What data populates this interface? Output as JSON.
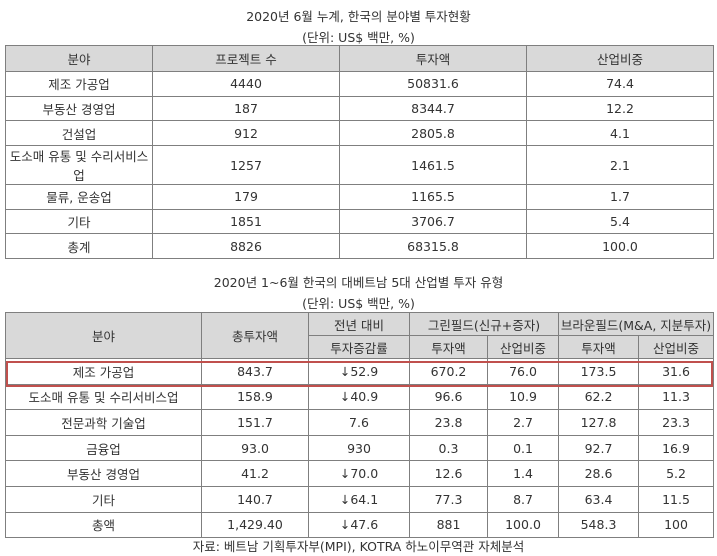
{
  "table1": {
    "title": "2020년 6월 누계, 한국의 분야별 투자현황",
    "unit": "(단위: US$ 백만, %)",
    "headers": [
      "분야",
      "프로젝트 수",
      "투자액",
      "산업비중"
    ],
    "rows": [
      [
        "제조 가공업",
        "4440",
        "50831.6",
        "74.4"
      ],
      [
        "부동산 경영업",
        "187",
        "8344.7",
        "12.2"
      ],
      [
        "건설업",
        "912",
        "2805.8",
        "4.1"
      ],
      [
        "도소매 유통 및 수리서비스업",
        "1257",
        "1461.5",
        "2.1"
      ],
      [
        "물류, 운송업",
        "179",
        "1165.5",
        "1.7"
      ],
      [
        "기타",
        "1851",
        "3706.7",
        "5.4"
      ],
      [
        "총계",
        "8826",
        "68315.8",
        "100.0"
      ]
    ]
  },
  "table2": {
    "title": "2020년 1~6월 한국의 대베트남 5대 산업별 투자 유형",
    "unit": "(단위: US$ 백만, %)",
    "headers": {
      "field": "분야",
      "total": "총투자액",
      "yoy_top": "전년 대비",
      "yoy_bottom": "투자증감률",
      "greenfield": "그린필드(신규+증자)",
      "brownfield": "브라운필드(M&A, 지분투자)",
      "amount": "투자액",
      "share": "산업비중"
    },
    "rows": [
      [
        "제조 가공업",
        "843.7",
        "↓52.9",
        "670.2",
        "76.0",
        "173.5",
        "31.6"
      ],
      [
        "도소매 유통 및 수리서비스업",
        "158.9",
        "↓40.9",
        "96.6",
        "10.9",
        "62.2",
        "11.3"
      ],
      [
        "전문과학 기술업",
        "151.7",
        "7.6",
        "23.8",
        "2.7",
        "127.8",
        "23.3"
      ],
      [
        "금융업",
        "93.0",
        "930",
        "0.3",
        "0.1",
        "92.7",
        "16.9"
      ],
      [
        "부동산 경영업",
        "41.2",
        "↓70.0",
        "12.6",
        "1.4",
        "28.6",
        "5.2"
      ],
      [
        "기타",
        "140.7",
        "↓64.1",
        "77.3",
        "8.7",
        "63.4",
        "11.5"
      ],
      [
        "총액",
        "1,429.40",
        "↓47.6",
        "881",
        "100.0",
        "548.3",
        "100"
      ]
    ]
  },
  "source": "자료: 베트남 기획투자부(MPI), KOTRA 하노이무역관 자체분석",
  "colors": {
    "header_bg": "#d9d9d9",
    "highlight_border": "#c0504d",
    "border": "#7f7f7f"
  }
}
